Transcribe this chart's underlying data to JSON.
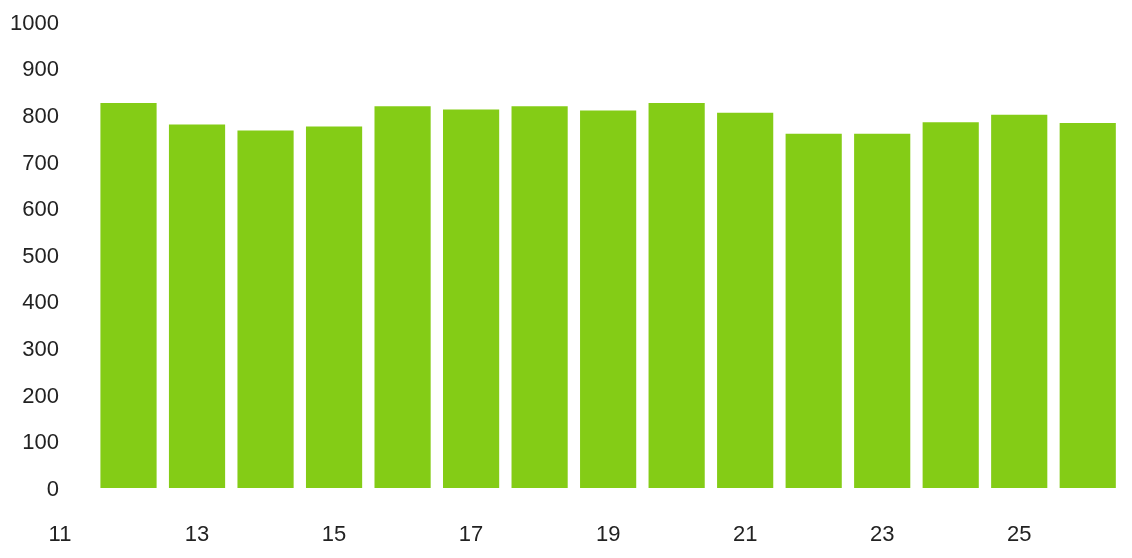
{
  "chart_data": {
    "type": "bar",
    "x": [
      12,
      13,
      14,
      15,
      16,
      17,
      18,
      19,
      20,
      21,
      22,
      23,
      24,
      25,
      26
    ],
    "values": [
      826,
      780,
      767,
      776,
      819,
      812,
      819,
      810,
      826,
      805,
      760,
      760,
      785,
      801,
      783
    ],
    "color": "#84cc16",
    "xlim": [
      11,
      26.5
    ],
    "xticks": [
      11,
      13,
      15,
      17,
      19,
      21,
      23,
      25
    ],
    "ylim": [
      0,
      1000
    ],
    "yticks": [
      0,
      100,
      200,
      300,
      400,
      500,
      600,
      700,
      800,
      900,
      1000
    ],
    "legend": false
  }
}
